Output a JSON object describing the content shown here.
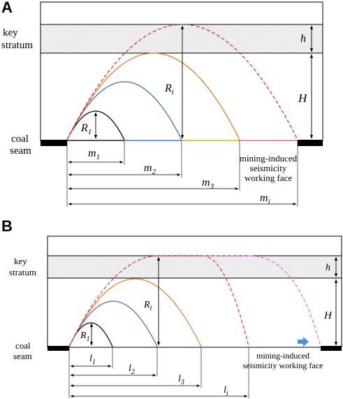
{
  "panelA": {
    "letter": "A",
    "key_stratum_line1": "key",
    "key_stratum_line2": "stratum",
    "coal_seam_line1": "coal",
    "coal_seam_line2": "seam",
    "h": "h",
    "H": "H",
    "Ri": "R",
    "Ri_sub": "i",
    "R1": "R",
    "R1_sub": "1",
    "m1": "m",
    "m1_sub": "1",
    "m2": "m",
    "m2_sub": "2",
    "m3": "m",
    "m3_sub": "3",
    "mi": "m",
    "mi_sub": "i",
    "face_line1": "mining-induced",
    "face_line2": "seismicity",
    "face_line3": "working face"
  },
  "panelB": {
    "letter": "B",
    "key_stratum_line1": "key",
    "key_stratum_line2": "stratum",
    "coal_seam_line1": "coal",
    "coal_seam_line2": "seam",
    "h": "h",
    "H": "H",
    "Ri": "R",
    "Ri_sub": "i",
    "R1": "R",
    "R1_sub": "1",
    "l1": "l",
    "l1_sub": "1",
    "l2": "l",
    "l2_sub": "2",
    "l3": "l",
    "l3_sub": "3",
    "li": "l",
    "li_sub": "i",
    "face_line1": "mining-induced",
    "face_line2": "seismicity working face"
  },
  "colors": {
    "curve1": "#000000",
    "curve2": "#3d6fb0",
    "curve3": "#e07b22",
    "curve_i": "#e03030",
    "curve_adv": "#e070e0",
    "seam_blue": "#3d7fd6",
    "seam_yellow": "#c8b820",
    "seam_pink": "#e86a8a",
    "arrow": "#4a90d9"
  }
}
